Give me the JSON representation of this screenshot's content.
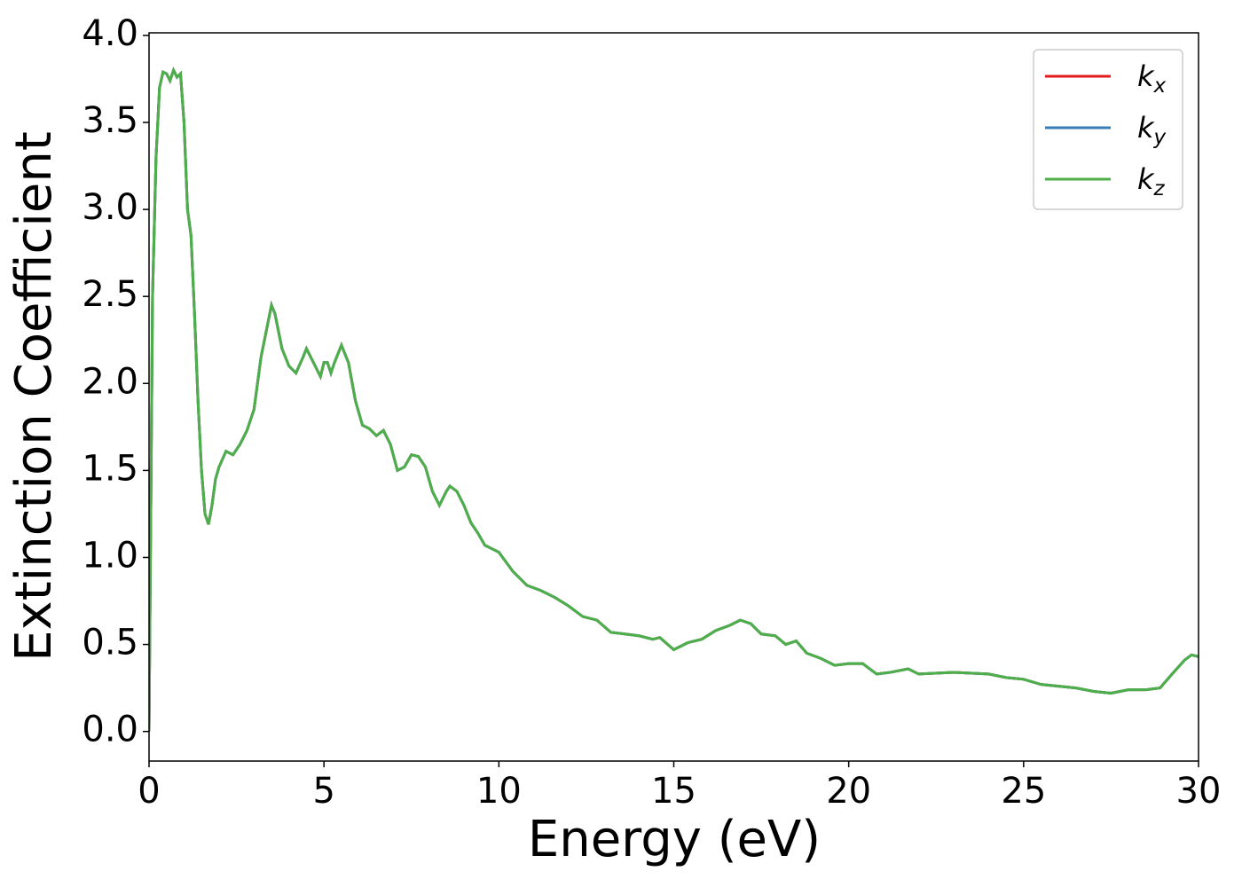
{
  "chart_data": {
    "type": "line",
    "xlabel": "Energy (eV)",
    "ylabel": "Extinction Coefficient",
    "xlim": [
      0,
      30
    ],
    "ylim": [
      -0.17,
      4.015
    ],
    "xticks": [
      0,
      5,
      10,
      15,
      20,
      25,
      30
    ],
    "yticks": [
      {
        "value": 0,
        "label": "0.0"
      },
      0.5,
      {
        "value": 1,
        "label": "1.0"
      },
      1.5,
      {
        "value": 2,
        "label": "2.0"
      },
      2.5,
      {
        "value": 3,
        "label": "3.0"
      },
      3.5,
      {
        "value": 4,
        "label": "4.0"
      }
    ],
    "legend": "upper right",
    "x": [
      0,
      0.1,
      0.2,
      0.3,
      0.4,
      0.5,
      0.6,
      0.7,
      0.8,
      0.9,
      1.0,
      1.1,
      1.2,
      1.3,
      1.4,
      1.5,
      1.6,
      1.7,
      1.8,
      1.9,
      2.0,
      2.2,
      2.4,
      2.6,
      2.8,
      3.0,
      3.2,
      3.4,
      3.5,
      3.6,
      3.8,
      4.0,
      4.2,
      4.4,
      4.5,
      4.7,
      4.9,
      5.0,
      5.1,
      5.2,
      5.3,
      5.5,
      5.7,
      5.9,
      6.1,
      6.3,
      6.5,
      6.7,
      6.9,
      7.1,
      7.3,
      7.5,
      7.7,
      7.9,
      8.1,
      8.3,
      8.5,
      8.6,
      8.8,
      9.0,
      9.2,
      9.4,
      9.6,
      10.0,
      10.4,
      10.8,
      11.2,
      11.6,
      12.0,
      12.4,
      12.8,
      13.2,
      13.6,
      14.0,
      14.4,
      14.6,
      15.0,
      15.4,
      15.8,
      16.2,
      16.6,
      16.9,
      17.2,
      17.5,
      17.9,
      18.2,
      18.5,
      18.8,
      19.2,
      19.6,
      20.0,
      20.4,
      20.8,
      21.2,
      21.7,
      22.0,
      23.0,
      24.0,
      24.5,
      25.0,
      25.5,
      26.0,
      26.5,
      27.0,
      27.5,
      28.0,
      28.5,
      28.9,
      29.2,
      29.6,
      29.8,
      30.0
    ],
    "series": [
      {
        "name": "kx",
        "color": "#e41a1c",
        "values": [
          0,
          2.5,
          3.3,
          3.7,
          3.79,
          3.78,
          3.74,
          3.8,
          3.76,
          3.78,
          3.5,
          3.0,
          2.85,
          2.4,
          1.9,
          1.5,
          1.25,
          1.19,
          1.3,
          1.45,
          1.52,
          1.61,
          1.59,
          1.65,
          1.73,
          1.85,
          2.15,
          2.35,
          2.45,
          2.4,
          2.2,
          2.1,
          2.06,
          2.15,
          2.2,
          2.12,
          2.04,
          2.12,
          2.12,
          2.06,
          2.12,
          2.22,
          2.12,
          1.9,
          1.76,
          1.74,
          1.7,
          1.73,
          1.65,
          1.5,
          1.52,
          1.59,
          1.58,
          1.52,
          1.38,
          1.3,
          1.38,
          1.41,
          1.38,
          1.3,
          1.2,
          1.14,
          1.07,
          1.03,
          0.92,
          0.84,
          0.81,
          0.77,
          0.72,
          0.66,
          0.64,
          0.57,
          0.56,
          0.55,
          0.53,
          0.54,
          0.47,
          0.51,
          0.53,
          0.58,
          0.61,
          0.64,
          0.62,
          0.56,
          0.55,
          0.5,
          0.52,
          0.45,
          0.42,
          0.38,
          0.39,
          0.39,
          0.33,
          0.34,
          0.36,
          0.33,
          0.34,
          0.33,
          0.31,
          0.3,
          0.27,
          0.26,
          0.25,
          0.23,
          0.22,
          0.24,
          0.24,
          0.25,
          0.32,
          0.41,
          0.44,
          0.43
        ]
      },
      {
        "name": "ky",
        "color": "#377eb8",
        "values": [
          0,
          2.5,
          3.3,
          3.7,
          3.79,
          3.78,
          3.74,
          3.8,
          3.76,
          3.78,
          3.5,
          3.0,
          2.85,
          2.4,
          1.9,
          1.5,
          1.25,
          1.19,
          1.3,
          1.45,
          1.52,
          1.61,
          1.59,
          1.65,
          1.73,
          1.85,
          2.15,
          2.35,
          2.45,
          2.4,
          2.2,
          2.1,
          2.06,
          2.15,
          2.2,
          2.12,
          2.04,
          2.12,
          2.12,
          2.06,
          2.12,
          2.22,
          2.12,
          1.9,
          1.76,
          1.74,
          1.7,
          1.73,
          1.65,
          1.5,
          1.52,
          1.59,
          1.58,
          1.52,
          1.38,
          1.3,
          1.38,
          1.41,
          1.38,
          1.3,
          1.2,
          1.14,
          1.07,
          1.03,
          0.92,
          0.84,
          0.81,
          0.77,
          0.72,
          0.66,
          0.64,
          0.57,
          0.56,
          0.55,
          0.53,
          0.54,
          0.47,
          0.51,
          0.53,
          0.58,
          0.61,
          0.64,
          0.62,
          0.56,
          0.55,
          0.5,
          0.52,
          0.45,
          0.42,
          0.38,
          0.39,
          0.39,
          0.33,
          0.34,
          0.36,
          0.33,
          0.34,
          0.33,
          0.31,
          0.3,
          0.27,
          0.26,
          0.25,
          0.23,
          0.22,
          0.24,
          0.24,
          0.25,
          0.32,
          0.41,
          0.44,
          0.43
        ]
      },
      {
        "name": "kz",
        "color": "#4daf4a",
        "values": [
          0,
          2.5,
          3.3,
          3.7,
          3.79,
          3.78,
          3.74,
          3.8,
          3.76,
          3.78,
          3.5,
          3.0,
          2.85,
          2.4,
          1.9,
          1.5,
          1.25,
          1.19,
          1.3,
          1.45,
          1.52,
          1.61,
          1.59,
          1.65,
          1.73,
          1.85,
          2.15,
          2.35,
          2.45,
          2.4,
          2.2,
          2.1,
          2.06,
          2.15,
          2.2,
          2.12,
          2.04,
          2.12,
          2.12,
          2.06,
          2.12,
          2.22,
          2.12,
          1.9,
          1.76,
          1.74,
          1.7,
          1.73,
          1.65,
          1.5,
          1.52,
          1.59,
          1.58,
          1.52,
          1.38,
          1.3,
          1.38,
          1.41,
          1.38,
          1.3,
          1.2,
          1.14,
          1.07,
          1.03,
          0.92,
          0.84,
          0.81,
          0.77,
          0.72,
          0.66,
          0.64,
          0.57,
          0.56,
          0.55,
          0.53,
          0.54,
          0.47,
          0.51,
          0.53,
          0.58,
          0.61,
          0.64,
          0.62,
          0.56,
          0.55,
          0.5,
          0.52,
          0.45,
          0.42,
          0.38,
          0.39,
          0.39,
          0.33,
          0.34,
          0.36,
          0.33,
          0.34,
          0.33,
          0.31,
          0.3,
          0.27,
          0.26,
          0.25,
          0.23,
          0.22,
          0.24,
          0.24,
          0.25,
          0.32,
          0.41,
          0.44,
          0.43
        ]
      }
    ]
  }
}
